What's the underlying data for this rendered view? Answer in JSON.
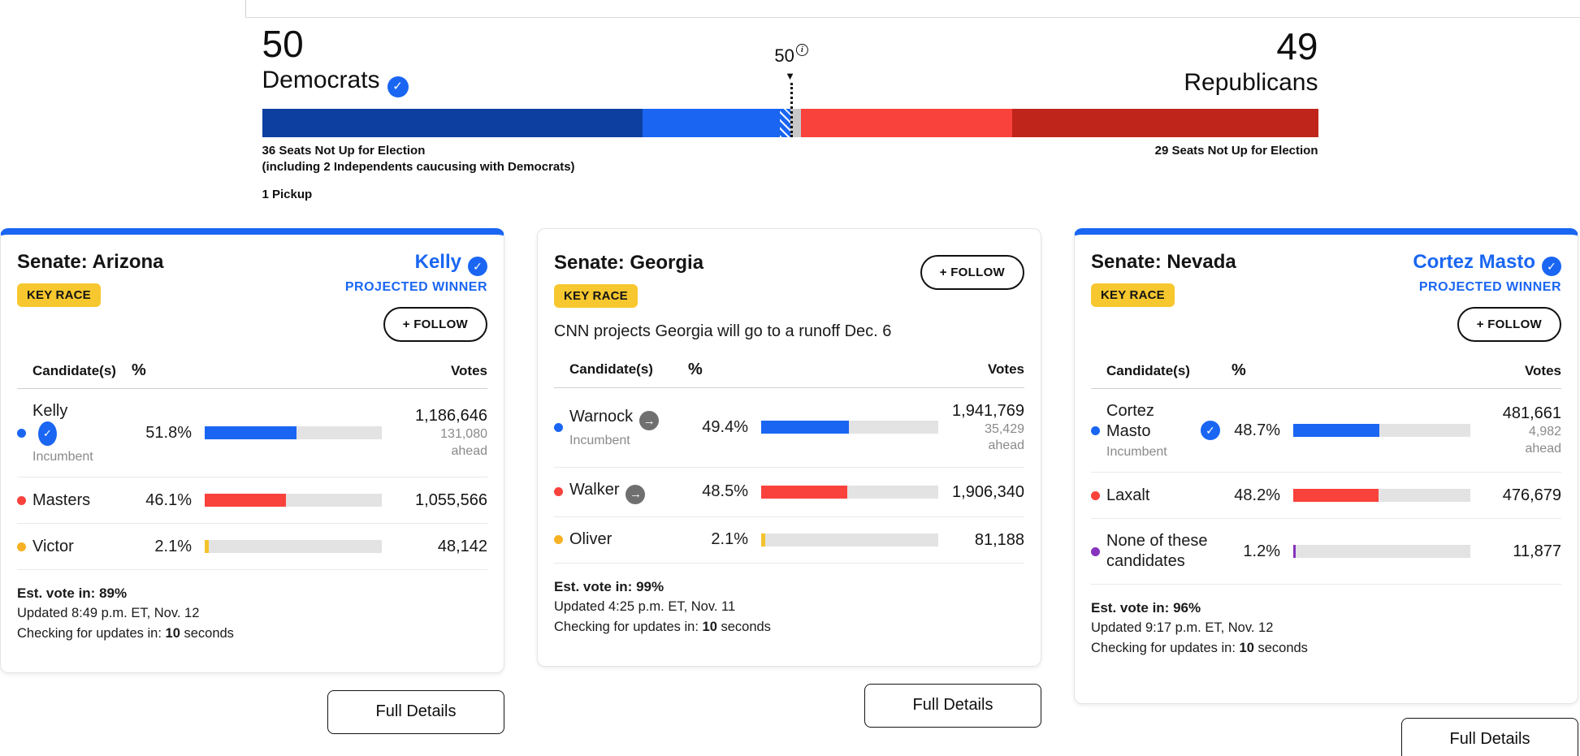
{
  "colors": {
    "cnn_blue": "#1a66f2",
    "dem_navy": "#0d3fa0",
    "rep_red": "#fa423c",
    "rep_dark_red": "#c0251c",
    "uncalled_gray": "#c8c8c8",
    "key_race_yellow": "#f6c72e",
    "other_yellow": "#f3c32c",
    "purple": "#8633bd",
    "track_gray": "#e3e3e3"
  },
  "balance_of_power": {
    "dem_count": "50",
    "dem_label": "Democrats",
    "rep_count": "49",
    "rep_label": "Republicans",
    "marker_label": "50",
    "marker_arrow": "▼",
    "segments": [
      {
        "name": "dem-seats-not-up",
        "seats": 36,
        "color": "#0d3fa0"
      },
      {
        "name": "dem-seats-won",
        "seats": 13,
        "color": "#1a66f2"
      },
      {
        "name": "dem-pickup",
        "seats": 1,
        "color": "#1a66f2"
      },
      {
        "name": "uncalled",
        "seats": 1,
        "color": "#c8c8c8"
      },
      {
        "name": "rep-seats-won",
        "seats": 20,
        "color": "#fa423c"
      },
      {
        "name": "rep-seats-not-up",
        "seats": 29,
        "color": "#c0251c"
      }
    ],
    "dem_note1": "36 Seats Not Up for Election",
    "dem_note2": "(including 2 Independents caucusing with Democrats)",
    "pickup_note": "1 Pickup",
    "rep_note": "29 Seats Not Up for Election"
  },
  "labels": {
    "key_race": "KEY RACE",
    "projected_winner": "PROJECTED WINNER",
    "follow": "+ FOLLOW",
    "full_details": "Full Details",
    "col_candidates": "Candidate(s)",
    "col_pct": "%",
    "col_votes": "Votes",
    "check_glyph": "✓",
    "runoff_arrow_glyph": "→",
    "info_glyph": "i"
  },
  "races": [
    {
      "title": "Senate: Arizona",
      "winner": "Kelly",
      "candidates": [
        {
          "name": "Kelly",
          "sub": "Incumbent",
          "dot": "#1a66f2",
          "bar": "#1a66f2",
          "pct": "51.8%",
          "pct_val": 51.8,
          "votes": "1,186,646",
          "ahead": "131,080",
          "ahead_word": "ahead"
        },
        {
          "name": "Masters",
          "dot": "#fa423c",
          "bar": "#fa423c",
          "pct": "46.1%",
          "pct_val": 46.1,
          "votes": "1,055,566"
        },
        {
          "name": "Victor",
          "dot": "#f7b124",
          "bar": "#f3c32c",
          "pct": "2.1%",
          "pct_val": 2.1,
          "votes": "48,142"
        }
      ],
      "est_vote": "Est. vote in: 89%",
      "updated": "Updated 8:49 p.m. ET, Nov. 12",
      "check_pre": "Checking for updates in: ",
      "check_num": "10",
      "check_post": " seconds"
    },
    {
      "title": "Senate: Georgia",
      "note": "CNN projects Georgia will go to a runoff Dec. 6",
      "candidates": [
        {
          "name": "Warnock",
          "sub": "Incumbent",
          "dot": "#1a66f2",
          "bar": "#1a66f2",
          "pct": "49.4%",
          "pct_val": 49.4,
          "votes": "1,941,769",
          "ahead": "35,429",
          "ahead_word": "ahead"
        },
        {
          "name": "Walker",
          "dot": "#fa423c",
          "bar": "#fa423c",
          "pct": "48.5%",
          "pct_val": 48.5,
          "votes": "1,906,340"
        },
        {
          "name": "Oliver",
          "dot": "#f7b124",
          "bar": "#f3c32c",
          "pct": "2.1%",
          "pct_val": 2.1,
          "votes": "81,188"
        }
      ],
      "est_vote": "Est. vote in: 99%",
      "updated": "Updated 4:25 p.m. ET, Nov. 11",
      "check_pre": "Checking for updates in: ",
      "check_num": "10",
      "check_post": " seconds"
    },
    {
      "title": "Senate: Nevada",
      "winner": "Cortez Masto",
      "candidates": [
        {
          "name": "Cortez\nMasto",
          "sub": "Incumbent",
          "dot": "#1a66f2",
          "bar": "#1a66f2",
          "pct": "48.7%",
          "pct_val": 48.7,
          "votes": "481,661",
          "ahead": "4,982",
          "ahead_word": "ahead"
        },
        {
          "name": "Laxalt",
          "dot": "#fa423c",
          "bar": "#fa423c",
          "pct": "48.2%",
          "pct_val": 48.2,
          "votes": "476,679"
        },
        {
          "name": "None of these\ncandidates",
          "dot": "#8633bd",
          "bar": "#8633bd",
          "pct": "1.2%",
          "pct_val": 1.2,
          "votes": "11,877"
        }
      ],
      "est_vote": "Est. vote in: 96%",
      "updated": "Updated 9:17 p.m. ET, Nov. 12",
      "check_pre": "Checking for updates in: ",
      "check_num": "10",
      "check_post": " seconds"
    }
  ]
}
